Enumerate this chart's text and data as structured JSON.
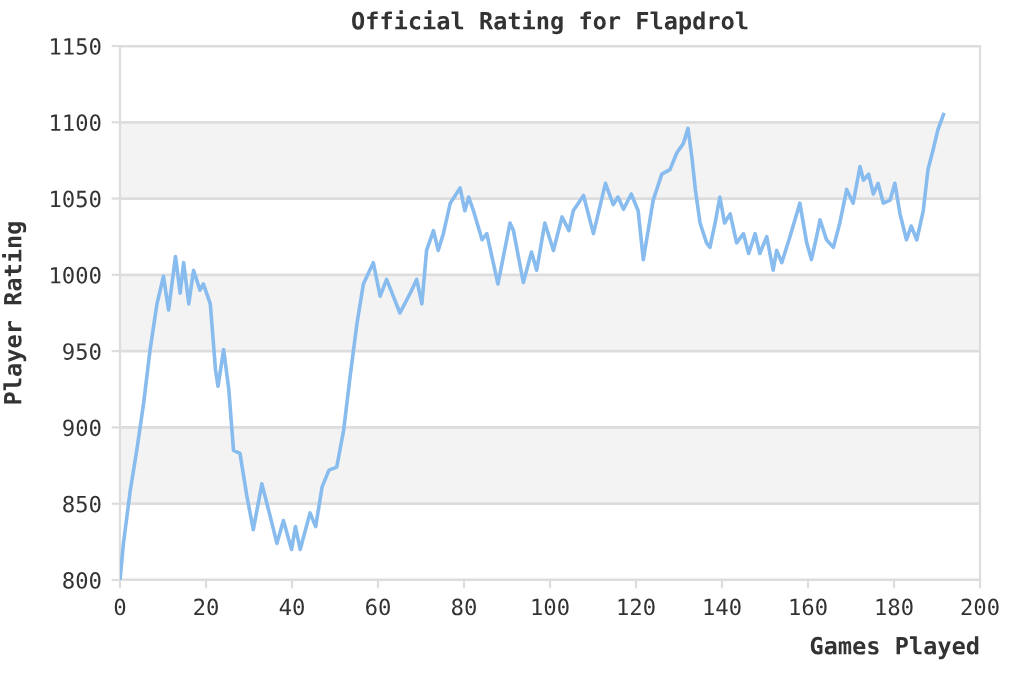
{
  "chart_data": {
    "type": "line",
    "title": "Official Rating for Flapdrol",
    "xlabel": "Games Played",
    "ylabel": "Player Rating",
    "xlim": [
      0,
      200
    ],
    "xticks": [
      0,
      20,
      40,
      60,
      80,
      100,
      120,
      140,
      160,
      180,
      200
    ],
    "ylim": [
      800,
      1150
    ],
    "yticks": [
      800,
      850,
      900,
      950,
      1000,
      1050,
      1100,
      1150
    ],
    "grid": "y",
    "marker": "none",
    "line_style": "solid",
    "bands": [
      {
        "axis": "y",
        "from": 850,
        "to": 900,
        "color": "#f3f3f3"
      },
      {
        "axis": "y",
        "from": 950,
        "to": 1000,
        "color": "#f3f3f3"
      },
      {
        "axis": "y",
        "from": 1050,
        "to": 1100,
        "color": "#f3f3f3"
      }
    ],
    "series": [
      {
        "color": "#88bbee",
        "x": [
          0,
          0.8,
          2.4,
          3.9,
          5.5,
          7,
          8.6,
          10.1,
          11.3,
          12.9,
          14,
          14.8,
          16,
          17.1,
          18.6,
          19.4,
          21,
          22.2,
          22.8,
          24.1,
          25.3,
          26.4,
          27.9,
          29.5,
          31,
          33,
          34.9,
          36.5,
          38,
          39.9,
          40.8,
          41.9,
          44.2,
          45.5,
          47,
          48.6,
          50.4,
          52,
          53.5,
          55.1,
          56.6,
          58.9,
          60.5,
          62,
          65.1,
          67.5,
          69,
          70.2,
          71.3,
          72.9,
          74,
          75.2,
          76.8,
          79.1,
          80.2,
          81.1,
          82.2,
          84.2,
          85.3,
          87.9,
          90.7,
          91.5,
          93.8,
          95.7,
          96.9,
          98.8,
          100.8,
          102.8,
          104.4,
          105.4,
          107.8,
          110.1,
          112.9,
          114.7,
          115.8,
          117.1,
          118.9,
          120.5,
          121.7,
          124,
          126,
          127.9,
          129.5,
          131,
          132.1,
          133,
          133.8,
          134.9,
          136.4,
          137.2,
          138.4,
          139.5,
          140.6,
          141.9,
          143.4,
          145,
          146.2,
          147.7,
          148.8,
          150.4,
          151.9,
          152.7,
          153.9,
          155.8,
          158.1,
          159.7,
          160.8,
          162,
          162.8,
          164.3,
          165.9,
          167.4,
          169,
          170.5,
          172.1,
          172.9,
          174.1,
          175.2,
          176.3,
          177.5,
          179.1,
          180.2,
          181.4,
          182.9,
          184,
          185.3,
          186.8,
          187.9,
          189.1,
          190.2,
          191.5
        ],
        "values": [
          800,
          824,
          859,
          885,
          916,
          951,
          981,
          999,
          977,
          1012,
          988,
          1008,
          981,
          1003,
          990,
          994,
          981,
          938,
          927,
          951,
          925,
          885,
          883,
          855,
          833,
          863,
          842,
          824,
          839,
          820,
          835,
          820,
          844,
          835,
          861,
          872,
          874,
          898,
          933,
          968,
          994,
          1008,
          986,
          997,
          975,
          988,
          997,
          981,
          1016,
          1029,
          1016,
          1027,
          1047,
          1057,
          1042,
          1051,
          1042,
          1023,
          1027,
          994,
          1034,
          1029,
          995,
          1015,
          1003,
          1034,
          1016,
          1038,
          1029,
          1042,
          1052,
          1027,
          1060,
          1046,
          1051,
          1043,
          1053,
          1042,
          1010,
          1049,
          1066,
          1069,
          1080,
          1086,
          1096,
          1077,
          1056,
          1034,
          1021,
          1018,
          1034,
          1051,
          1034,
          1040,
          1021,
          1027,
          1014,
          1027,
          1014,
          1025,
          1003,
          1016,
          1008,
          1025,
          1047,
          1021,
          1010,
          1025,
          1036,
          1023,
          1018,
          1034,
          1056,
          1047,
          1071,
          1062,
          1066,
          1053,
          1060,
          1047,
          1049,
          1060,
          1040,
          1023,
          1032,
          1023,
          1042,
          1069,
          1082,
          1095,
          1105
        ]
      }
    ]
  }
}
